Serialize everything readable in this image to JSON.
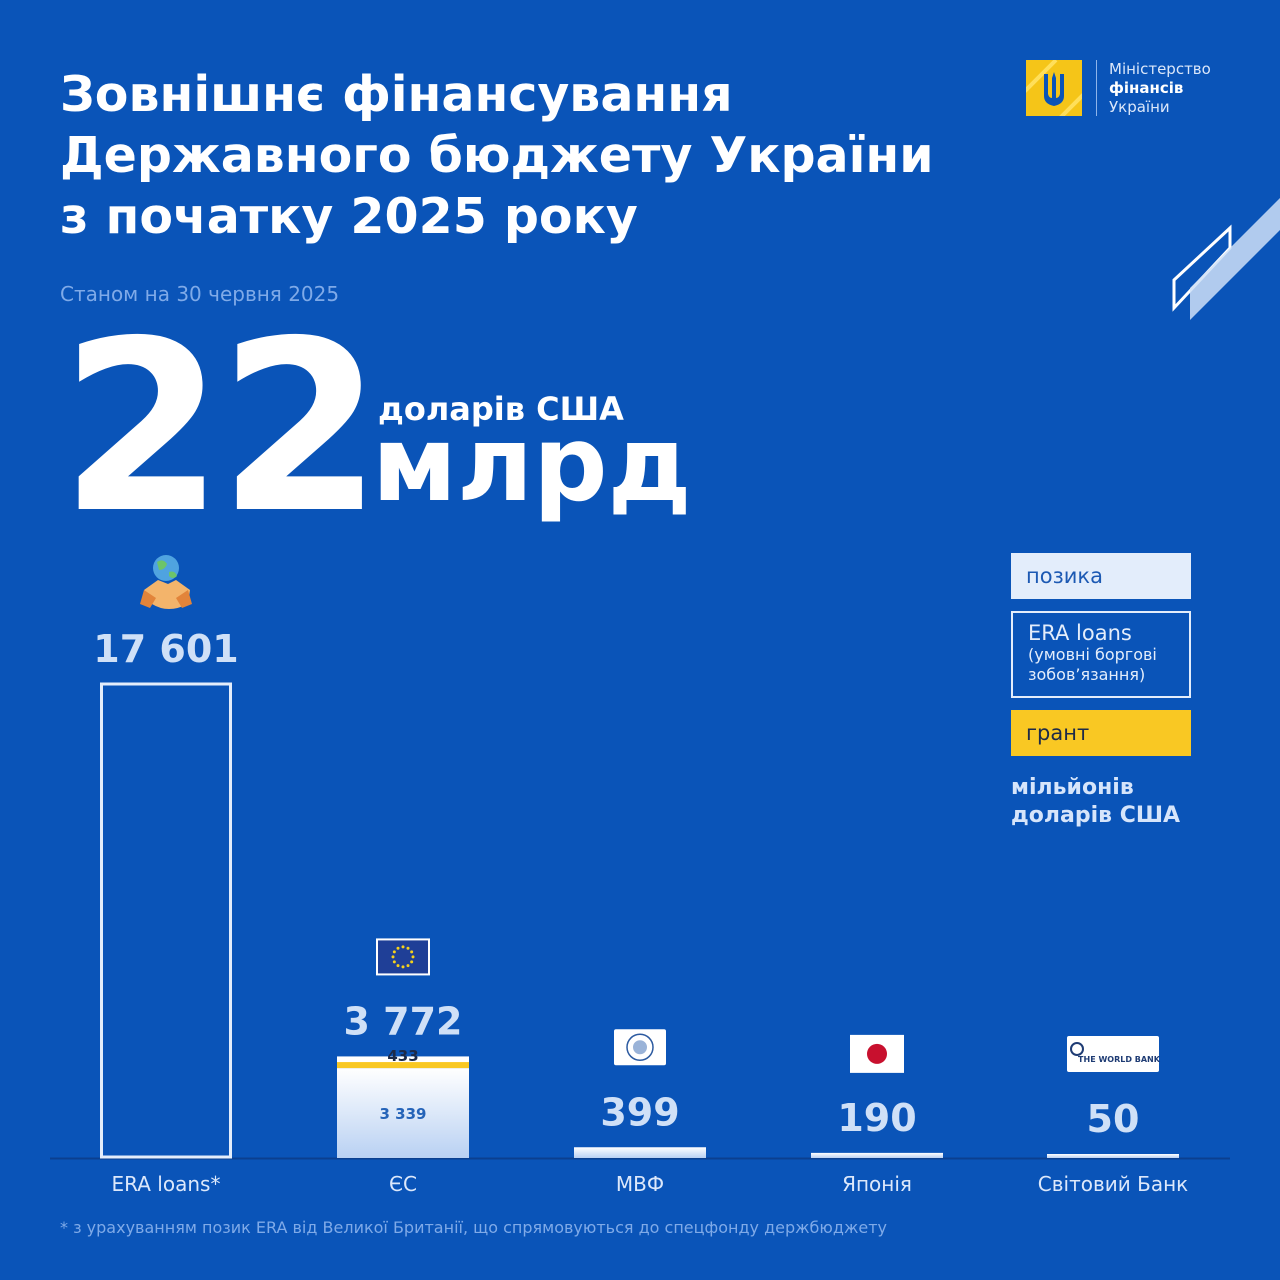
{
  "header": {
    "title_lines": [
      "Зовнішнє фінансування",
      "Державного бюджету України",
      "з початку 2025 року"
    ],
    "as_of": "Станом на 30 червня 2025"
  },
  "logo": {
    "line1": "Міністерство",
    "line2": "фінансів",
    "line3": "України",
    "emblem_icon": "trident-icon"
  },
  "total": {
    "number": "22",
    "unit_small": "доларів США",
    "unit_big": "млрд"
  },
  "legend": {
    "loan": "позика",
    "era": "ERA loans",
    "era_sub": "(умовні боргові зобов’язання)",
    "grant": "грант",
    "unit": "мільйонів доларів США"
  },
  "footnote": "* з урахуванням позик ERA від Великої Британії, що спрямовуються до спецфонду держбюджету",
  "colors": {
    "background": "#0a54b8",
    "loan": "#e3edfb",
    "grant": "#f9c823",
    "era_outline": "#e3edfb"
  },
  "chart_data": {
    "type": "bar",
    "stacked": true,
    "categories": [
      "ERA loans*",
      "ЄС",
      "МВФ",
      "Японія",
      "Світовий Банк"
    ],
    "totals": [
      "17 601",
      "3 772",
      "399",
      "190",
      "50"
    ],
    "category_icons": [
      "handshake-globe-icon",
      "eu-flag-icon",
      "imf-logo-icon",
      "japan-flag-icon",
      "world-bank-logo-icon"
    ],
    "icon_texts": [
      "",
      "",
      "",
      "",
      "THE WORLD BANK"
    ],
    "series": [
      {
        "name": "ERA loans",
        "values": [
          17601,
          0,
          0,
          0,
          0
        ],
        "labels": [
          "",
          "",
          "",
          "",
          ""
        ]
      },
      {
        "name": "позика",
        "values": [
          0,
          3339,
          399,
          190,
          50
        ],
        "labels": [
          "",
          "3 339",
          "",
          "",
          ""
        ]
      },
      {
        "name": "грант",
        "values": [
          0,
          433,
          0,
          0,
          0
        ],
        "labels": [
          "",
          "433",
          "",
          "",
          ""
        ]
      }
    ]
  }
}
